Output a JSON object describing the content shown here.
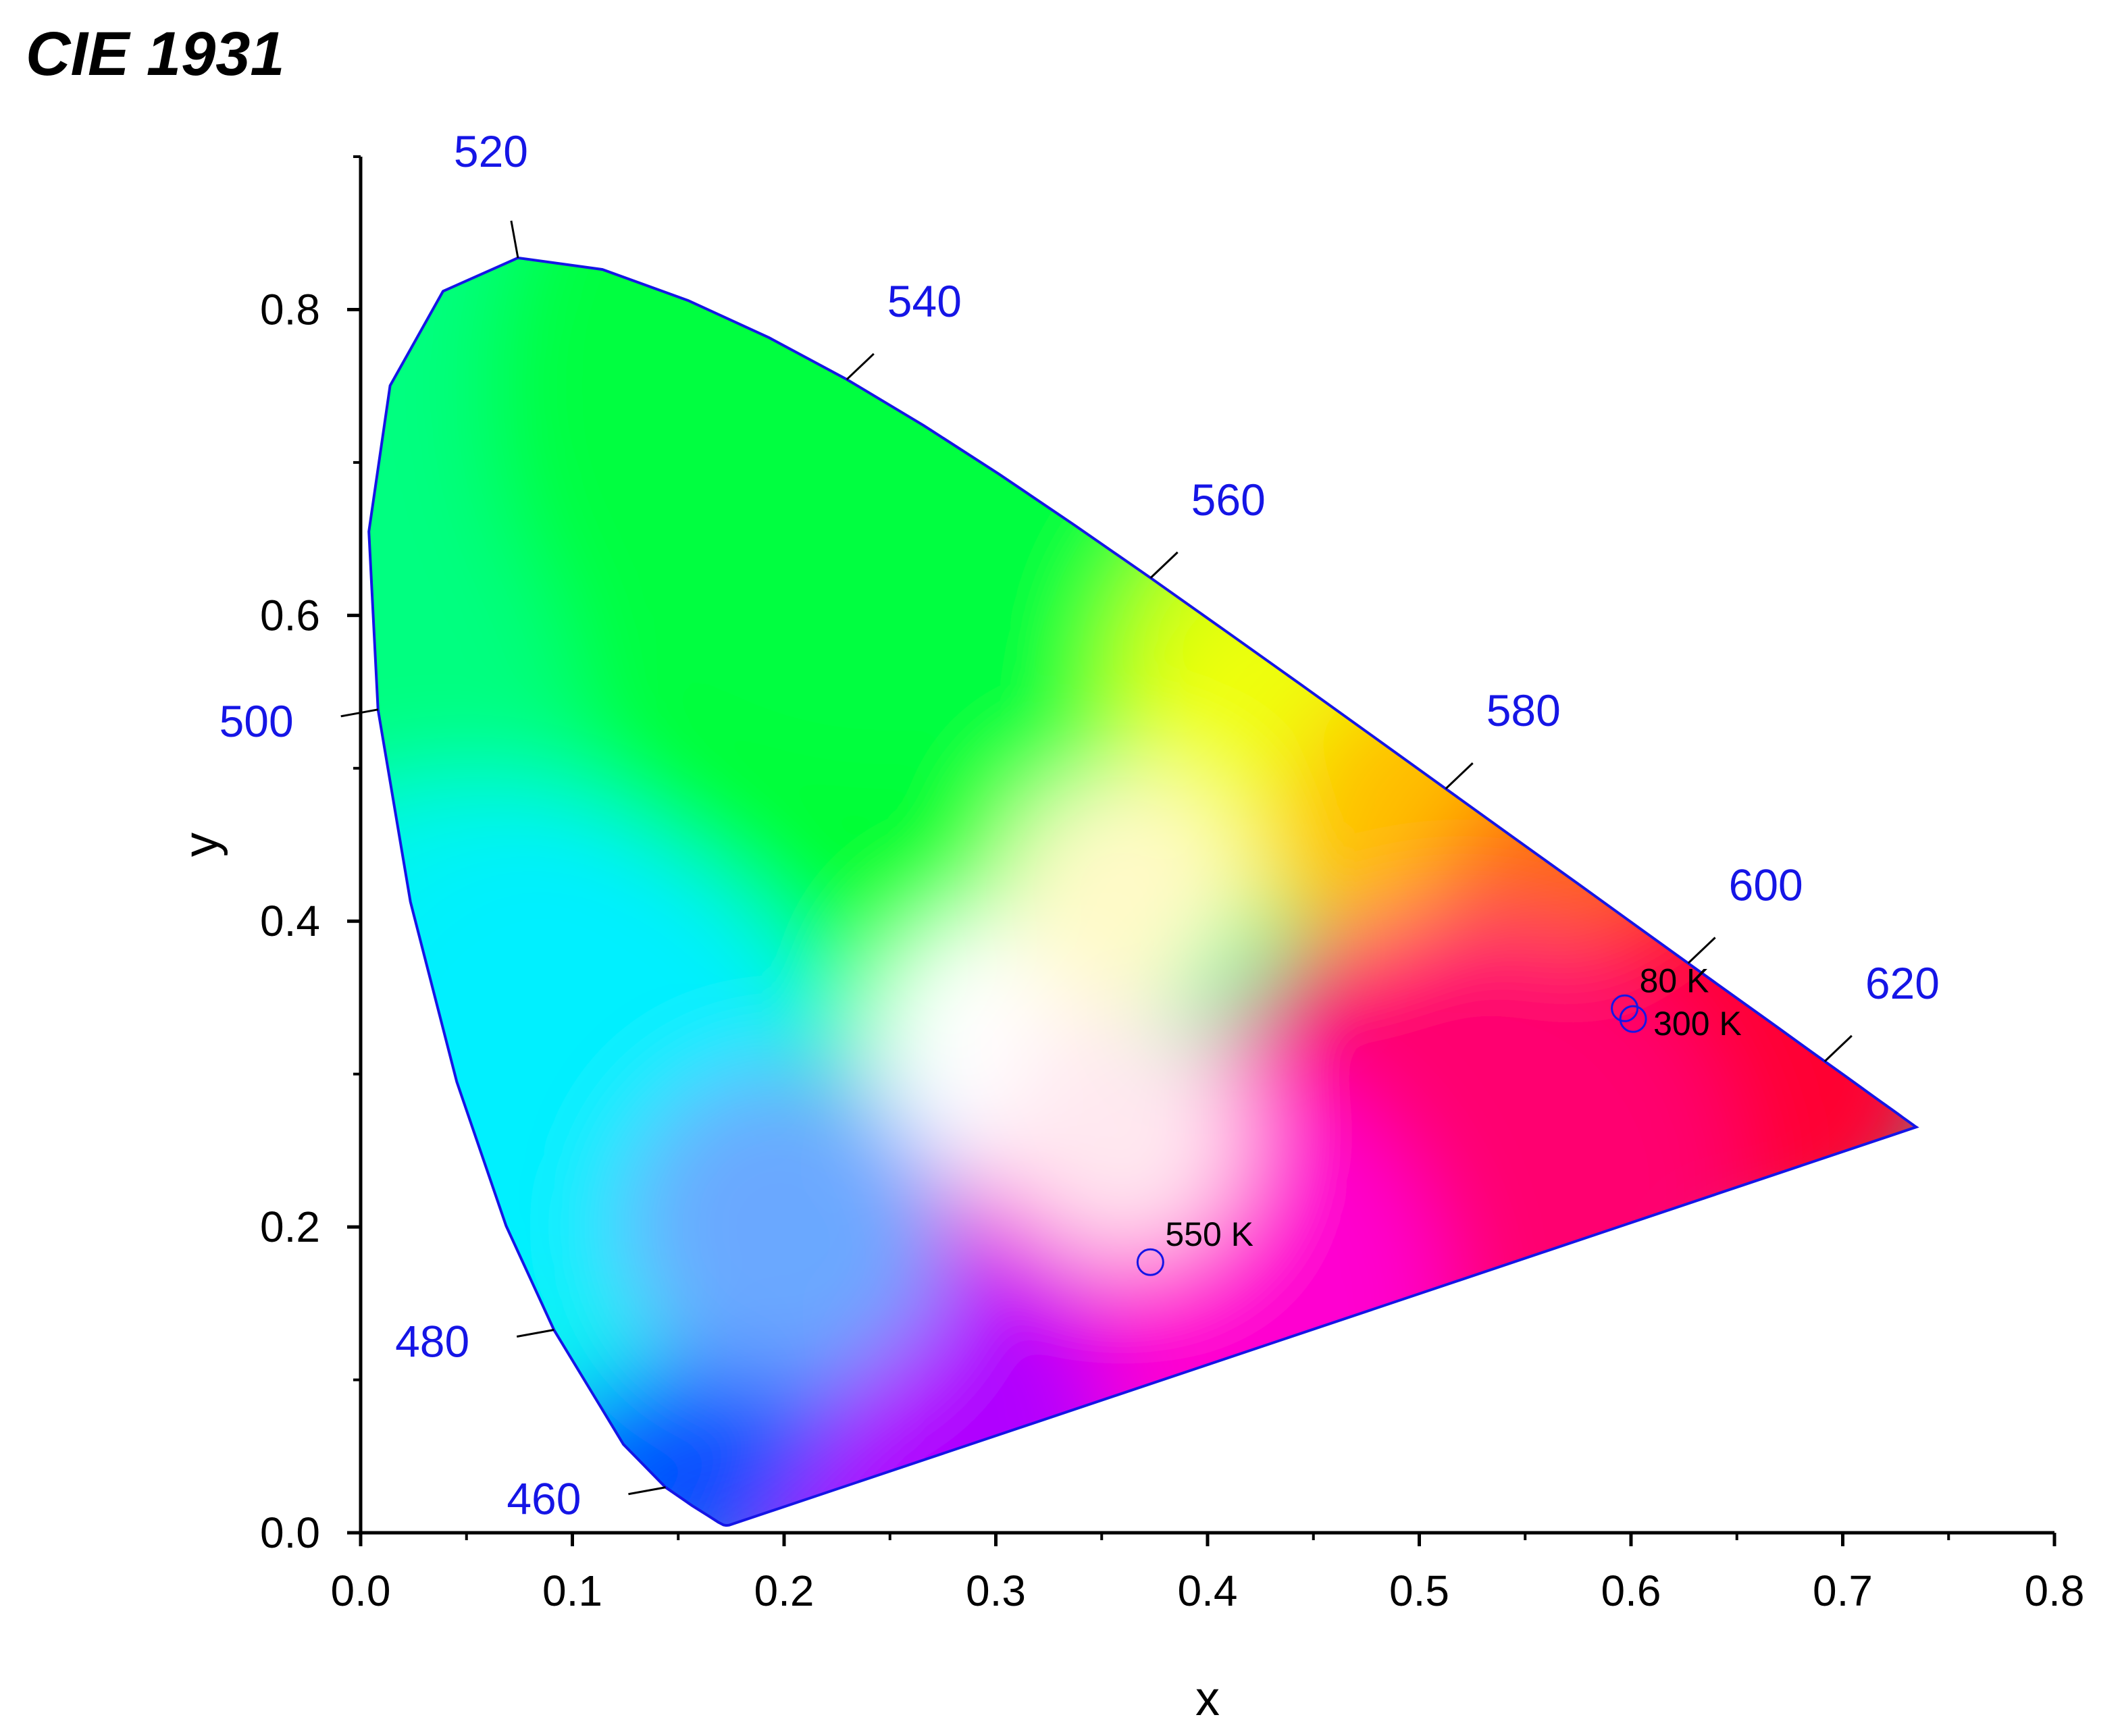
{
  "chart_data": {
    "type": "scatter",
    "title": "CIE 1931",
    "xlabel": "x",
    "ylabel": "y",
    "xlim": [
      0.0,
      0.8
    ],
    "ylim": [
      0.0,
      0.9
    ],
    "xticks": [
      "0.0",
      "0.1",
      "0.2",
      "0.3",
      "0.4",
      "0.5",
      "0.6",
      "0.7",
      "0.8"
    ],
    "yticks": [
      "0.0",
      "0.2",
      "0.4",
      "0.6",
      "0.8"
    ],
    "grid": false,
    "locus_color": "#1515e6",
    "spectral_locus": [
      [
        0.1741,
        0.005
      ],
      [
        0.1736,
        0.0049
      ],
      [
        0.1726,
        0.0048
      ],
      [
        0.1714,
        0.0051
      ],
      [
        0.1689,
        0.0069
      ],
      [
        0.1644,
        0.0109
      ],
      [
        0.1566,
        0.0177
      ],
      [
        0.144,
        0.0297
      ],
      [
        0.1241,
        0.0578
      ],
      [
        0.0913,
        0.1327
      ],
      [
        0.0687,
        0.2007
      ],
      [
        0.0454,
        0.295
      ],
      [
        0.0235,
        0.4127
      ],
      [
        0.0082,
        0.5384
      ],
      [
        0.0039,
        0.6548
      ],
      [
        0.0139,
        0.7502
      ],
      [
        0.0389,
        0.812
      ],
      [
        0.0743,
        0.8338
      ],
      [
        0.1142,
        0.8262
      ],
      [
        0.1547,
        0.8059
      ],
      [
        0.1929,
        0.7816
      ],
      [
        0.2296,
        0.7543
      ],
      [
        0.2658,
        0.7243
      ],
      [
        0.3016,
        0.6923
      ],
      [
        0.3373,
        0.6589
      ],
      [
        0.3731,
        0.6245
      ],
      [
        0.4087,
        0.5896
      ],
      [
        0.4441,
        0.5547
      ],
      [
        0.4788,
        0.5202
      ],
      [
        0.5125,
        0.4866
      ],
      [
        0.5448,
        0.4544
      ],
      [
        0.5752,
        0.4242
      ],
      [
        0.6029,
        0.3965
      ],
      [
        0.627,
        0.3725
      ],
      [
        0.6482,
        0.3514
      ],
      [
        0.6658,
        0.334
      ],
      [
        0.6801,
        0.3197
      ],
      [
        0.6915,
        0.3083
      ],
      [
        0.7006,
        0.2993
      ],
      [
        0.7079,
        0.292
      ],
      [
        0.714,
        0.2859
      ],
      [
        0.719,
        0.2809
      ],
      [
        0.723,
        0.277
      ],
      [
        0.726,
        0.274
      ],
      [
        0.7283,
        0.2717
      ],
      [
        0.73,
        0.27
      ],
      [
        0.7311,
        0.2689
      ],
      [
        0.732,
        0.268
      ],
      [
        0.7327,
        0.2673
      ],
      [
        0.7334,
        0.2666
      ],
      [
        0.734,
        0.266
      ],
      [
        0.7344,
        0.2656
      ],
      [
        0.7346,
        0.2654
      ],
      [
        0.7347,
        0.2653
      ]
    ],
    "wavelength_labels": [
      {
        "label": "460",
        "x": 0.144,
        "y": 0.0297,
        "dir": "left"
      },
      {
        "label": "480",
        "x": 0.0913,
        "y": 0.1327,
        "dir": "left"
      },
      {
        "label": "500",
        "x": 0.0082,
        "y": 0.5384,
        "dir": "left"
      },
      {
        "label": "520",
        "x": 0.0743,
        "y": 0.8338,
        "dir": "up"
      },
      {
        "label": "540",
        "x": 0.2296,
        "y": 0.7543,
        "dir": "upright"
      },
      {
        "label": "560",
        "x": 0.3731,
        "y": 0.6245,
        "dir": "upright"
      },
      {
        "label": "580",
        "x": 0.5125,
        "y": 0.4866,
        "dir": "upright"
      },
      {
        "label": "600",
        "x": 0.627,
        "y": 0.3725,
        "dir": "upright"
      },
      {
        "label": "620",
        "x": 0.6915,
        "y": 0.3083,
        "dir": "upright"
      }
    ],
    "series": [
      {
        "marker_color": "#1515e6",
        "points": [
          {
            "x": 0.597,
            "y": 0.343,
            "label": "80 K"
          },
          {
            "x": 0.601,
            "y": 0.336,
            "label": "300 K"
          },
          {
            "x": 0.373,
            "y": 0.177,
            "label": "550 K"
          }
        ]
      }
    ]
  }
}
